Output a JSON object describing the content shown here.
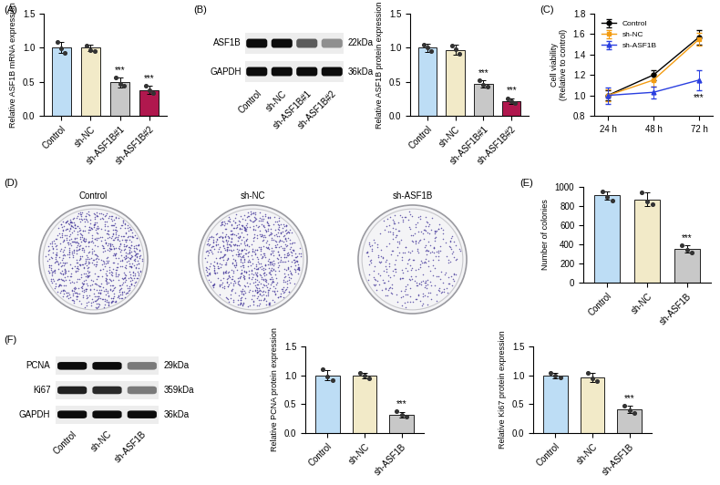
{
  "chart_data": [
    {
      "type": "bar",
      "panel_label": "(A)",
      "y_label": "Relative ASF1B mRNA expression",
      "categories": [
        "Control",
        "sh-NC",
        "sh-ASF1B#1",
        "sh-ASF1B#2"
      ],
      "values": [
        1.0,
        1.0,
        0.49,
        0.38
      ],
      "errors": [
        0.08,
        0.05,
        0.07,
        0.06
      ],
      "points": [
        [
          1.08,
          0.99,
          0.93
        ],
        [
          1.03,
          0.97,
          0.95
        ],
        [
          0.56,
          0.47,
          0.44
        ],
        [
          0.44,
          0.38,
          0.33
        ]
      ],
      "significance": [
        null,
        null,
        "***",
        "***"
      ],
      "colors": [
        "#BDDDF5",
        "#F2EAC8",
        "#C8C8C8",
        "#B0184E"
      ],
      "ylim": [
        0.0,
        1.5
      ],
      "yticks": [
        0.0,
        0.5,
        1.0,
        1.5
      ]
    },
    {
      "type": "blot",
      "panel_label": "(B)",
      "lanes": [
        "Control",
        "sh-NC",
        "sh-ASF1B#1",
        "sh-ASF1B#2"
      ],
      "rows": [
        {
          "label": "ASF1B",
          "size": "22kDa",
          "intensity": [
            1.0,
            1.0,
            0.6,
            0.35
          ]
        },
        {
          "label": "GAPDH",
          "size": "36kDa",
          "intensity": [
            1.0,
            1.0,
            1.0,
            1.0
          ]
        }
      ]
    },
    {
      "type": "bar",
      "y_label": "Relative ASF1B protein expression",
      "categories": [
        "Control",
        "sh-NC",
        "sh-ASF1B#1",
        "sh-ASF1B#2"
      ],
      "values": [
        1.0,
        0.97,
        0.47,
        0.22
      ],
      "errors": [
        0.06,
        0.07,
        0.05,
        0.04
      ],
      "points": [
        [
          1.05,
          1.0,
          0.95
        ],
        [
          1.03,
          0.98,
          0.91
        ],
        [
          0.52,
          0.46,
          0.43
        ],
        [
          0.26,
          0.22,
          0.19
        ]
      ],
      "significance": [
        null,
        null,
        "***",
        "***"
      ],
      "colors": [
        "#BDDDF5",
        "#F2EAC8",
        "#C8C8C8",
        "#B0184E"
      ],
      "ylim": [
        0.0,
        1.5
      ],
      "yticks": [
        0.0,
        0.5,
        1.0,
        1.5
      ]
    },
    {
      "type": "line",
      "panel_label": "(C)",
      "y_label": "Cell viability\n(Relative to control)",
      "categories": [
        "24 h",
        "48 h",
        "72 h"
      ],
      "legend": "upper left",
      "series": [
        {
          "name": "Control",
          "color": "#000000",
          "marker": "circle",
          "values": [
            1.0,
            1.2,
            1.57
          ],
          "errors": [
            0.05,
            0.05,
            0.07
          ]
        },
        {
          "name": "sh-NC",
          "color": "#F39C12",
          "marker": "square",
          "values": [
            1.0,
            1.15,
            1.55
          ],
          "errors": [
            0.06,
            0.06,
            0.06
          ]
        },
        {
          "name": "sh-ASF1B",
          "color": "#2A3FE0",
          "marker": "triangle",
          "values": [
            1.0,
            1.03,
            1.15
          ],
          "errors": [
            0.08,
            0.06,
            0.1
          ],
          "significance": [
            null,
            null,
            "***"
          ]
        }
      ],
      "ylim": [
        0.8,
        1.8
      ],
      "yticks": [
        0.8,
        1.0,
        1.2,
        1.4,
        1.6,
        1.8
      ]
    },
    {
      "type": "image",
      "panel_label": "(D)",
      "titles": [
        "Control",
        "sh-NC",
        "sh-ASF1B"
      ]
    },
    {
      "type": "bar",
      "panel_label": "(E)",
      "y_label": "Number of colonies",
      "categories": [
        "Control",
        "sh-NC",
        "sh-ASF1B"
      ],
      "values": [
        910,
        870,
        350
      ],
      "errors": [
        40,
        70,
        40
      ],
      "points": [
        [
          950,
          900,
          860
        ],
        [
          940,
          850,
          820
        ],
        [
          390,
          340,
          310
        ]
      ],
      "significance": [
        null,
        null,
        "***"
      ],
      "colors": [
        "#BDDDF5",
        "#F2EAC8",
        "#C8C8C8"
      ],
      "ylim": [
        0,
        1000
      ],
      "yticks": [
        0,
        200,
        400,
        600,
        800,
        1000
      ]
    },
    {
      "type": "blot",
      "panel_label": "(F)",
      "lanes": [
        "Control",
        "sh-NC",
        "sh-ASF1B"
      ],
      "rows": [
        {
          "label": "PCNA",
          "size": "29kDa",
          "intensity": [
            1.0,
            1.0,
            0.45
          ]
        },
        {
          "label": "Ki67",
          "size": "359kDa",
          "intensity": [
            0.9,
            0.85,
            0.45
          ]
        },
        {
          "label": "GAPDH",
          "size": "36kDa",
          "intensity": [
            1.0,
            1.0,
            1.0
          ]
        }
      ]
    },
    {
      "type": "bar",
      "y_label": "Relative PCNA protein expression",
      "categories": [
        "Control",
        "sh-NC",
        "sh-ASF1B"
      ],
      "values": [
        1.0,
        0.99,
        0.32
      ],
      "errors": [
        0.09,
        0.05,
        0.05
      ],
      "points": [
        [
          1.1,
          0.98,
          0.92
        ],
        [
          1.05,
          0.99,
          0.95
        ],
        [
          0.38,
          0.32,
          0.28
        ]
      ],
      "significance": [
        null,
        null,
        "***"
      ],
      "colors": [
        "#BDDDF5",
        "#F2EAC8",
        "#C8C8C8"
      ],
      "ylim": [
        0.0,
        1.5
      ],
      "yticks": [
        0.0,
        0.5,
        1.0,
        1.5
      ]
    },
    {
      "type": "bar",
      "y_label": "Relative Ki67 protein expression",
      "categories": [
        "Control",
        "sh-NC",
        "sh-ASF1B"
      ],
      "values": [
        1.0,
        0.96,
        0.41
      ],
      "errors": [
        0.05,
        0.08,
        0.06
      ],
      "points": [
        [
          1.05,
          1.0,
          0.96
        ],
        [
          1.05,
          0.95,
          0.9
        ],
        [
          0.47,
          0.4,
          0.35
        ]
      ],
      "significance": [
        null,
        null,
        "***"
      ],
      "colors": [
        "#BDDDF5",
        "#F2EAC8",
        "#C8C8C8"
      ],
      "ylim": [
        0.0,
        1.5
      ],
      "yticks": [
        0.0,
        0.5,
        1.0,
        1.5
      ]
    }
  ]
}
